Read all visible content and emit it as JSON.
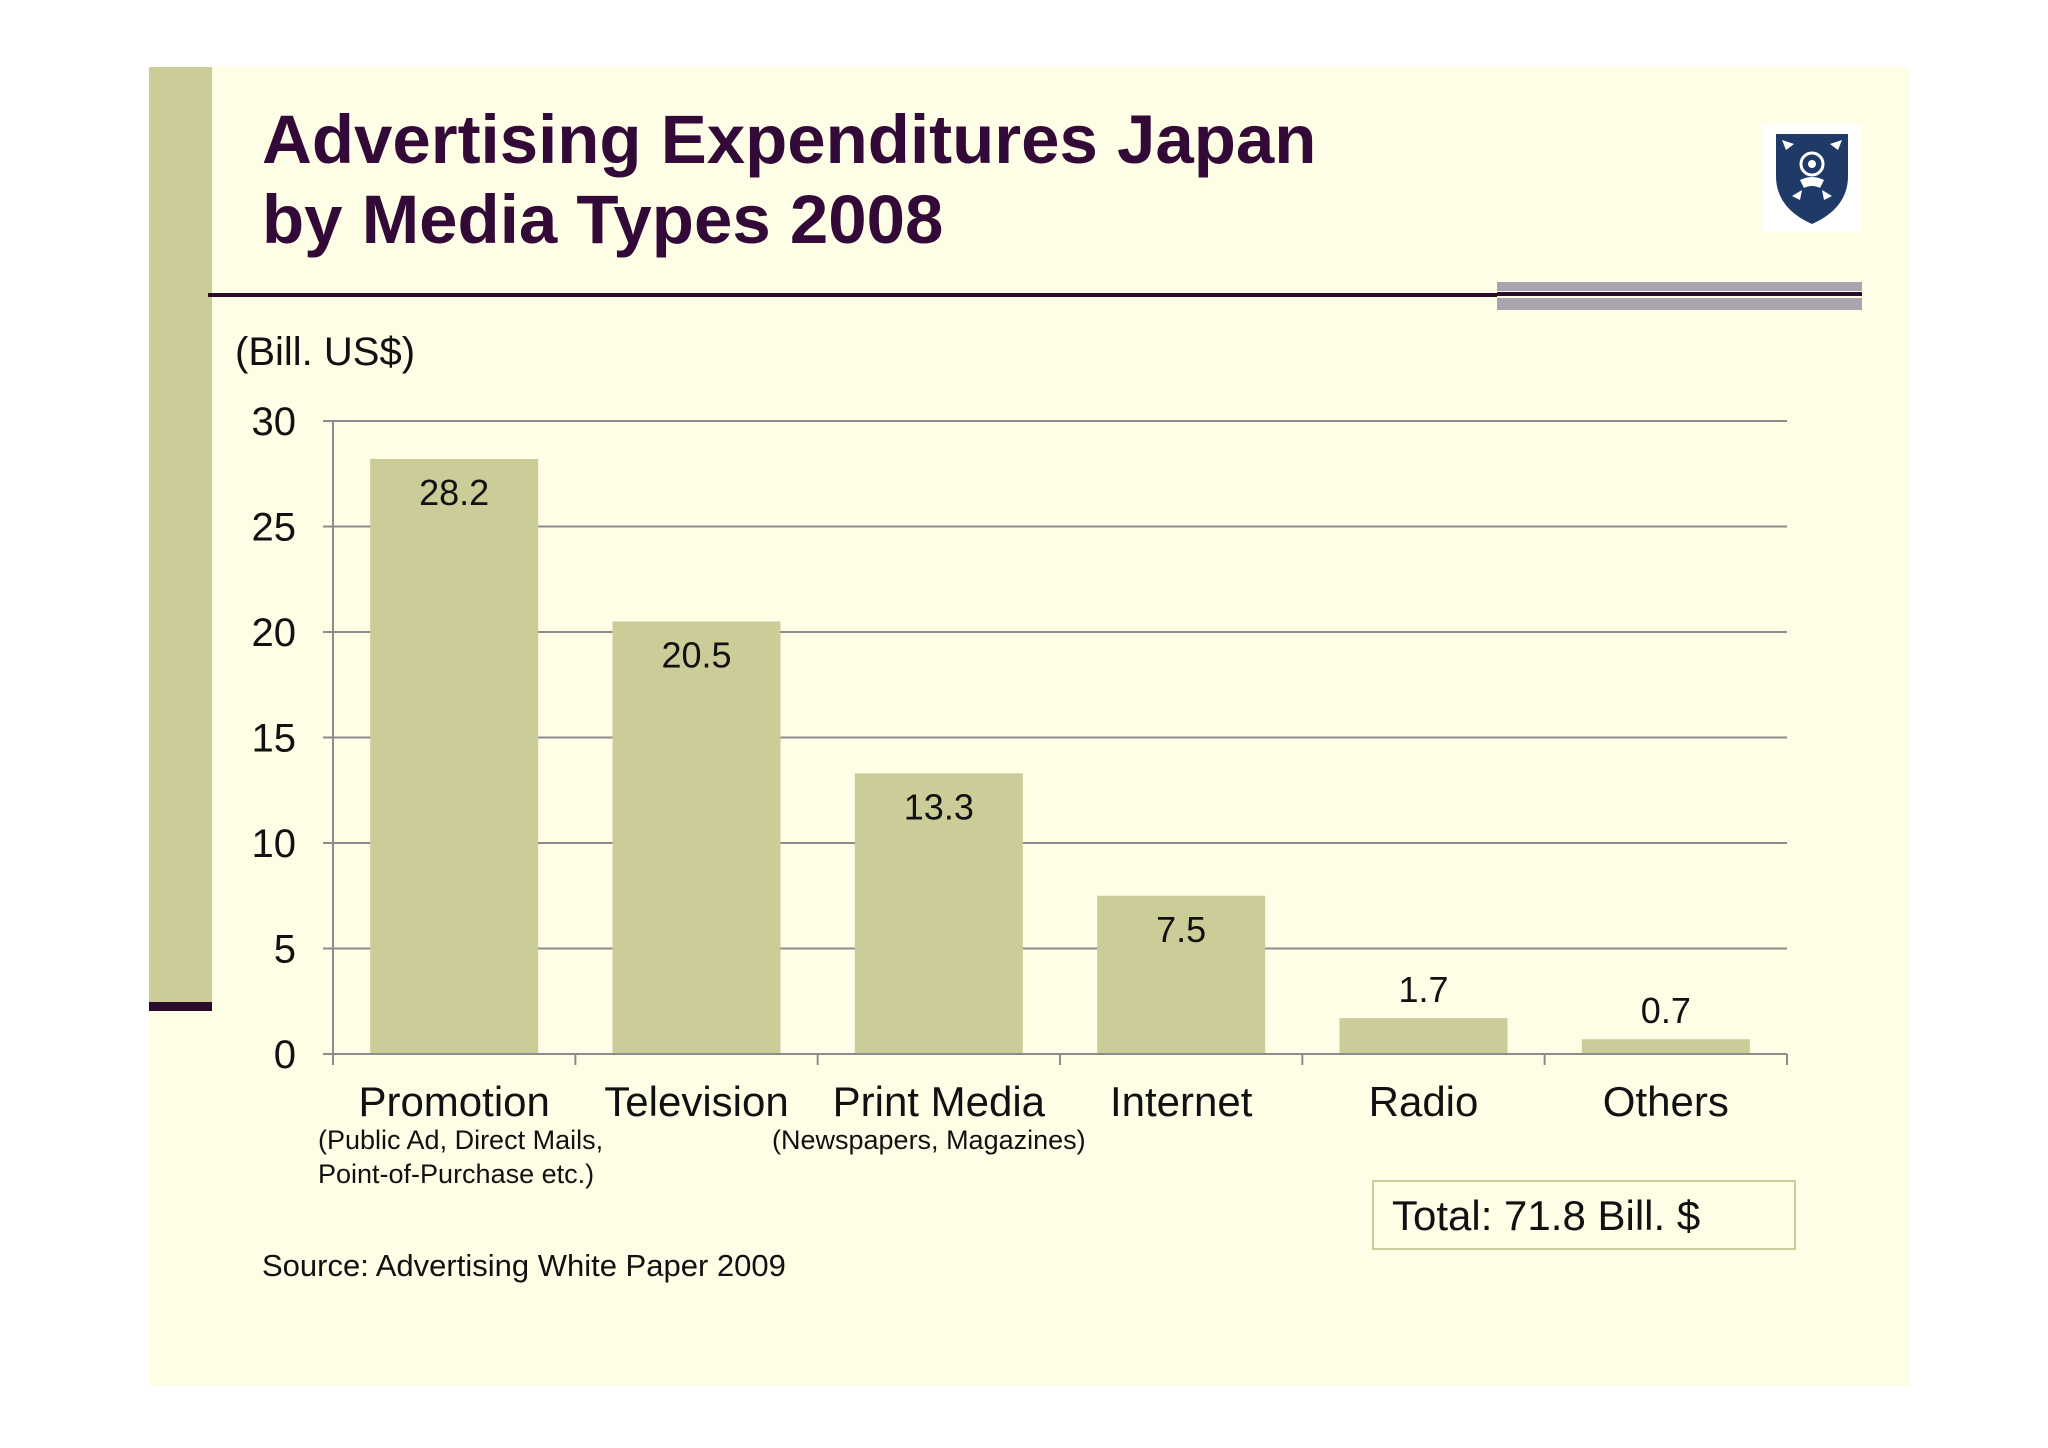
{
  "slide": {
    "title_line1": "Advertising Expenditures Japan",
    "title_line2": "by Media Types 2008",
    "unit_label": "(Bill. US$)",
    "notes": {
      "promotion_line1": "(Public Ad, Direct Mails,",
      "promotion_line2": "Point-of-Purchase etc.)",
      "print_media": "(Newspapers,  Magazines)"
    },
    "total": "Total: 71.8 Bill. $",
    "source": "Source: Advertising White Paper 2009",
    "logo_icon": "shield-crest-icon"
  },
  "colors": {
    "bar": "#cccc99",
    "title": "#330a37",
    "background": "#fefde6",
    "gridline": "#8c8c8c",
    "logo_shield": "#1f3a66"
  },
  "chart_data": {
    "type": "bar",
    "categories": [
      "Promotion",
      "Television",
      "Print Media",
      "Internet",
      "Radio",
      "Others"
    ],
    "values": [
      28.2,
      20.5,
      13.3,
      7.5,
      1.7,
      0.7
    ],
    "data_labels": [
      "28.2",
      "20.5",
      "13.3",
      "7.5",
      "1.7",
      "0.7"
    ],
    "ylim": [
      0,
      30
    ],
    "yticks": [
      0,
      5,
      10,
      15,
      20,
      25,
      30
    ],
    "ylabel": "(Bill. US$)",
    "xlabel": "",
    "grid": true,
    "legend": "none"
  }
}
